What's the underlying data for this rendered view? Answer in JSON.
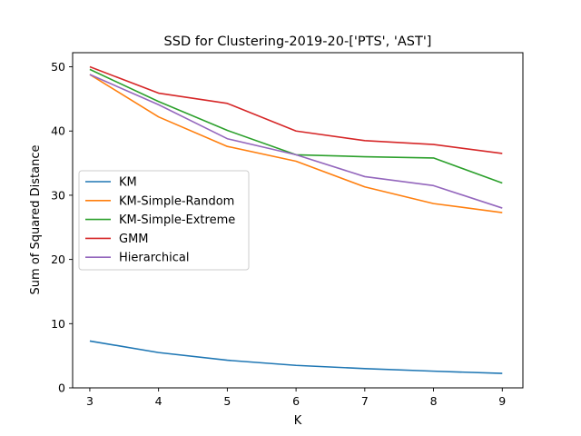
{
  "chart_data": {
    "type": "line",
    "title": "SSD for Clustering-2019-20-['PTS', 'AST']",
    "xlabel": "K",
    "ylabel": "Sum of Squared Distance",
    "x": [
      3,
      4,
      5,
      6,
      7,
      8,
      9
    ],
    "xlim": [
      2.75,
      9.3
    ],
    "ylim": [
      0,
      52.2
    ],
    "xticks": [
      3,
      4,
      5,
      6,
      7,
      8,
      9
    ],
    "yticks": [
      0,
      10,
      20,
      30,
      40,
      50
    ],
    "grid": false,
    "legend_position": "center-left",
    "series": [
      {
        "name": "KM",
        "color": "#1f77b4",
        "values": [
          7.3,
          5.5,
          4.3,
          3.5,
          3.0,
          2.6,
          2.25
        ]
      },
      {
        "name": "KM-Simple-Random",
        "color": "#ff7f0e",
        "values": [
          48.8,
          42.2,
          37.6,
          35.3,
          31.3,
          28.7,
          27.3
        ]
      },
      {
        "name": "KM-Simple-Extreme",
        "color": "#2ca02c",
        "values": [
          49.6,
          44.6,
          40.1,
          36.3,
          36.0,
          35.8,
          31.9
        ]
      },
      {
        "name": "GMM",
        "color": "#d62728",
        "values": [
          50.0,
          45.9,
          44.3,
          40.0,
          38.5,
          37.9,
          36.5
        ]
      },
      {
        "name": "Hierarchical",
        "color": "#9467bd",
        "values": [
          48.8,
          44.1,
          38.8,
          36.3,
          32.9,
          31.5,
          28.0
        ]
      }
    ]
  }
}
